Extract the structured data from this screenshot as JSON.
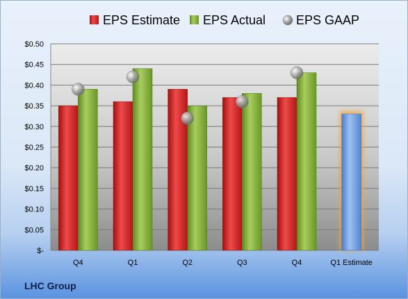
{
  "company": "LHC Group",
  "chart_data": {
    "type": "bar",
    "categories": [
      "Q4",
      "Q1",
      "Q2",
      "Q3",
      "Q4",
      "Q1 Estimate"
    ],
    "series": [
      {
        "name": "EPS Estimate",
        "color": "#d42a2a",
        "values": [
          0.35,
          0.36,
          0.39,
          0.37,
          0.37,
          null
        ]
      },
      {
        "name": "EPS Actual",
        "color": "#82ac3a",
        "values": [
          0.39,
          0.44,
          0.35,
          0.38,
          0.43,
          null
        ]
      },
      {
        "name": "Q1 Estimate",
        "color": "#6f9ee0",
        "values": [
          null,
          null,
          null,
          null,
          null,
          0.33
        ]
      }
    ],
    "scatter": {
      "name": "EPS GAAP",
      "values": [
        0.39,
        0.42,
        0.32,
        0.36,
        0.43,
        null
      ]
    },
    "legend": [
      "EPS Estimate",
      "EPS Actual",
      "EPS GAAP"
    ],
    "ylim": [
      0,
      0.5
    ],
    "yticks": [
      0,
      0.05,
      0.1,
      0.15,
      0.2,
      0.25,
      0.3,
      0.35,
      0.4,
      0.45,
      0.5
    ],
    "ytick_labels": [
      "$-",
      "$0.05",
      "$0.10",
      "$0.15",
      "$0.20",
      "$0.25",
      "$0.30",
      "$0.35",
      "$0.40",
      "$0.45",
      "$0.50"
    ],
    "grid": true,
    "legend_position": "top"
  }
}
